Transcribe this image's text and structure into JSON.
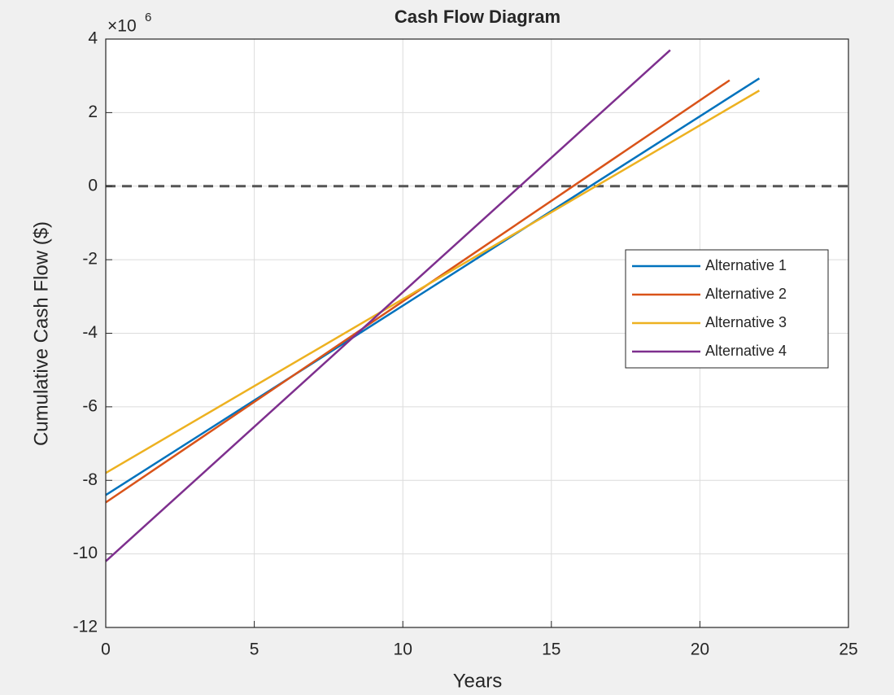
{
  "chart_data": {
    "type": "line",
    "title": "Cash Flow Diagram",
    "xlabel": "Years",
    "ylabel": "Cumulative Cash Flow ($)",
    "y_multiplier": {
      "base": "×10",
      "exponent": "6"
    },
    "xlim": [
      0,
      25
    ],
    "xticks": [
      0,
      5,
      10,
      15,
      20,
      25
    ],
    "ylim": [
      -12,
      4
    ],
    "yticks": [
      -12,
      -10,
      -8,
      -6,
      -4,
      -2,
      0,
      2,
      4
    ],
    "grid": true,
    "hline": 0,
    "legend": "east",
    "series": [
      {
        "name": "Alternative 1",
        "color": "#0072bd",
        "x": [
          0,
          22
        ],
        "values": [
          -8.4,
          2.93
        ]
      },
      {
        "name": "Alternative 2",
        "color": "#d95319",
        "x": [
          0,
          21
        ],
        "values": [
          -8.6,
          2.88
        ]
      },
      {
        "name": "Alternative 3",
        "color": "#edb120",
        "x": [
          0,
          22
        ],
        "values": [
          -7.8,
          2.6
        ]
      },
      {
        "name": "Alternative 4",
        "color": "#7e2f8e",
        "x": [
          0,
          19
        ],
        "values": [
          -10.2,
          3.7
        ]
      }
    ]
  }
}
